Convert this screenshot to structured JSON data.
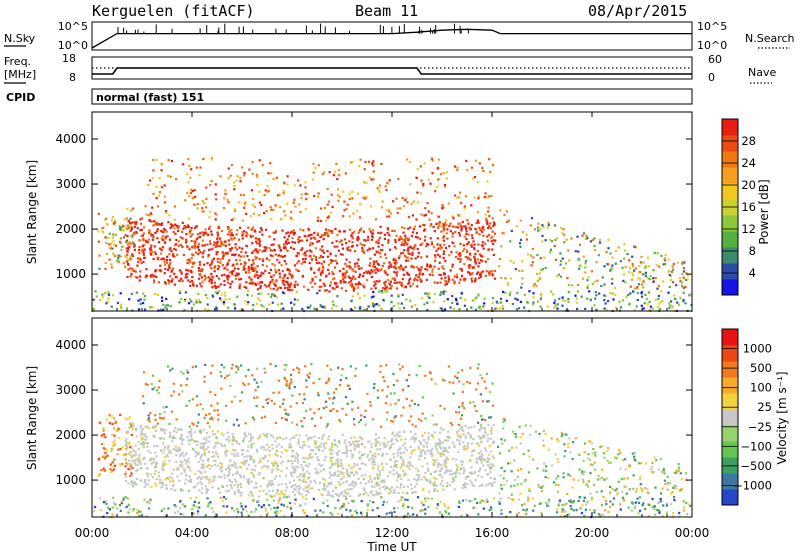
{
  "header": {
    "station": "Kerguelen (fitACF)",
    "beam": "Beam 11",
    "date": "08/Apr/2015"
  },
  "noise_panel": {
    "left_label": "N.Sky",
    "left_ticks": [
      "10^5",
      "10^0"
    ],
    "right_label": "N.Search",
    "right_ticks": [
      "10^5",
      "10^0"
    ]
  },
  "freq_panel": {
    "left_label_1": "Freq.",
    "left_label_2": "[MHz]",
    "left_ticks": [
      "18",
      "8"
    ],
    "right_label": "Nave",
    "right_ticks": [
      "60",
      "0"
    ]
  },
  "cpid": {
    "label": "CPID",
    "value": "normal (fast) 151"
  },
  "colors": {
    "power_scale": [
      "#1414e6",
      "#2a4ea8",
      "#3d8a6e",
      "#55b040",
      "#8cc83c",
      "#c8d232",
      "#f0c81e",
      "#f5a01e",
      "#f07814",
      "#eb4b14",
      "#e61e14"
    ],
    "velocity_scale": [
      "#2846c8",
      "#3c78a0",
      "#3ca064",
      "#64c850",
      "#96d26e",
      "#c8c8c8",
      "#f0d23c",
      "#f5aa28",
      "#f0781e",
      "#eb4614",
      "#e61414"
    ]
  },
  "chart_data": [
    {
      "type": "line",
      "title": "",
      "x": [
        "00:00",
        "01:00",
        "02:00",
        "04:00",
        "06:00",
        "08:00",
        "10:00",
        "12:00",
        "13:00",
        "14:00",
        "15:00",
        "16:00",
        "16:20",
        "18:00",
        "20:00",
        "22:00",
        "24:00"
      ],
      "series": [
        {
          "name": "N.Sky",
          "values": [
            1,
            1000,
            1000,
            1000,
            1000,
            1000,
            1000,
            1000,
            2000,
            5000,
            8000,
            5000,
            1000,
            1000,
            1000,
            1000,
            1000
          ]
        }
      ],
      "ylabel": "N.Sky",
      "ylim": [
        "10^0",
        "10^5"
      ],
      "scale": "log"
    },
    {
      "type": "line",
      "title": "",
      "x": [
        "00:00",
        "00:50",
        "01:00",
        "13:00",
        "13:10",
        "24:00"
      ],
      "series": [
        {
          "name": "Freq.",
          "values": [
            10,
            10,
            13,
            13,
            10,
            10
          ]
        },
        {
          "name": "Nave",
          "values": [
            30,
            30,
            30,
            30,
            30,
            30
          ]
        }
      ],
      "ylabel": "Freq. [MHz]",
      "ylim": [
        8,
        18
      ],
      "y2label": "Nave",
      "y2lim": [
        0,
        60
      ]
    },
    {
      "type": "heatmap",
      "title": "",
      "xlabel": "Time UT",
      "ylabel": "Slant Range [km]",
      "xticks": [
        "00:00",
        "04:00",
        "08:00",
        "12:00",
        "16:00",
        "20:00",
        "00:00"
      ],
      "yticks": [
        "1000",
        "2000",
        "3000",
        "4000"
      ],
      "ylim": [
        180,
        4600
      ],
      "colorbar_label": "Power [dB]",
      "colorbar_ticks": [
        "4",
        "8",
        "12",
        "16",
        "20",
        "24",
        "28"
      ],
      "colorbar_range": [
        0,
        30
      ]
    },
    {
      "type": "heatmap",
      "title": "",
      "xlabel": "Time UT",
      "ylabel": "Slant Range [km]",
      "xticks": [
        "00:00",
        "04:00",
        "08:00",
        "12:00",
        "16:00",
        "20:00",
        "00:00"
      ],
      "yticks": [
        "1000",
        "2000",
        "3000",
        "4000"
      ],
      "ylim": [
        180,
        4600
      ],
      "colorbar_label": "Velocity [m s⁻¹]",
      "colorbar_ticks": [
        "1000",
        "500",
        "100",
        "25",
        "−25",
        "−100",
        "−500",
        "−1000"
      ]
    }
  ]
}
